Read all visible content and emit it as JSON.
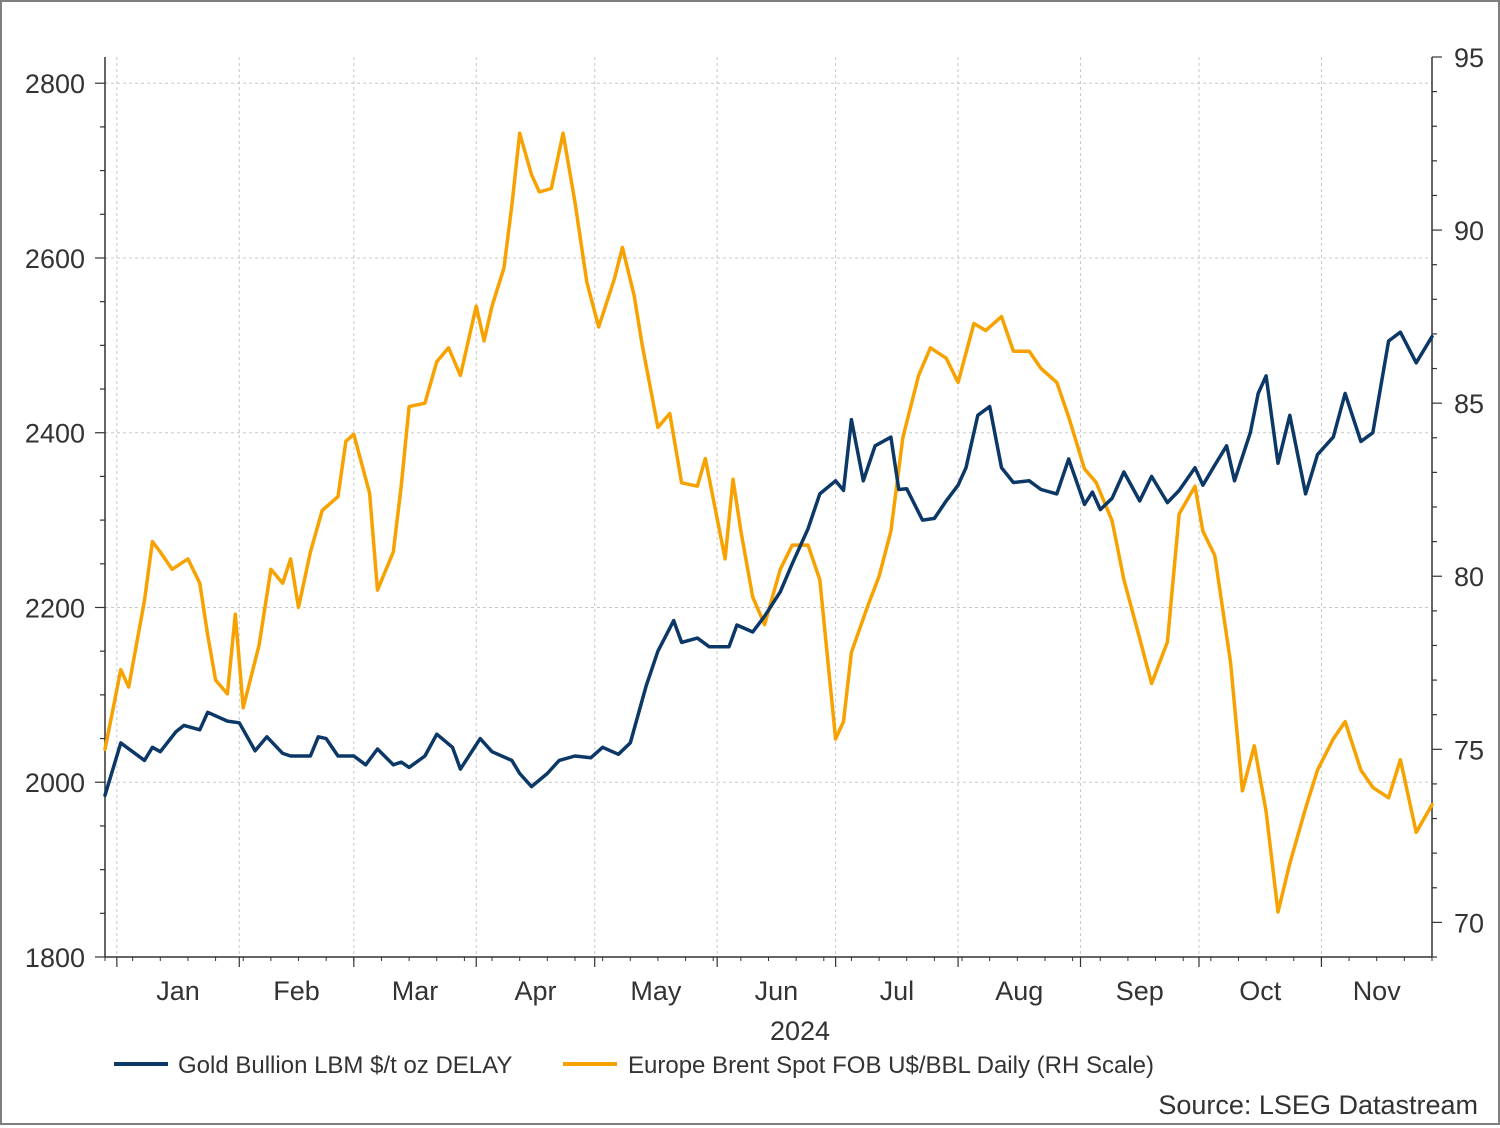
{
  "chart_data": {
    "type": "line",
    "x_axis": {
      "months": [
        "Jan",
        "Feb",
        "Mar",
        "Apr",
        "May",
        "Jun",
        "Jul",
        "Aug",
        "Sep",
        "Oct",
        "Nov"
      ],
      "year_label": "2024",
      "range": [
        "2023-12-29",
        "2024-11-29"
      ]
    },
    "y_left": {
      "ticks": [
        1800,
        2000,
        2200,
        2400,
        2600,
        2800
      ],
      "ylim": [
        1800,
        2830
      ]
    },
    "y_right": {
      "ticks": [
        70,
        75,
        80,
        85,
        90,
        95
      ],
      "ylim": [
        69.0,
        95.0
      ]
    },
    "grid": true,
    "legend_position": "bottom",
    "source": "Source: LSEG Datastream",
    "colors": {
      "gold": "#0b3866",
      "brent": "#f7a200",
      "grid": "#c8c8c8",
      "axis": "#333333"
    },
    "series": [
      {
        "name": "Gold Bullion LBM $/t oz DELAY",
        "axis": "left",
        "points": [
          [
            "2023-12-29",
            1985
          ],
          [
            "2024-01-02",
            2045
          ],
          [
            "2024-01-05",
            2035
          ],
          [
            "2024-01-08",
            2025
          ],
          [
            "2024-01-10",
            2040
          ],
          [
            "2024-01-12",
            2035
          ],
          [
            "2024-01-16",
            2058
          ],
          [
            "2024-01-18",
            2065
          ],
          [
            "2024-01-22",
            2060
          ],
          [
            "2024-01-24",
            2080
          ],
          [
            "2024-01-29",
            2070
          ],
          [
            "2024-02-01",
            2068
          ],
          [
            "2024-02-05",
            2036
          ],
          [
            "2024-02-08",
            2052
          ],
          [
            "2024-02-12",
            2033
          ],
          [
            "2024-02-14",
            2030
          ],
          [
            "2024-02-19",
            2030
          ],
          [
            "2024-02-21",
            2052
          ],
          [
            "2024-02-23",
            2050
          ],
          [
            "2024-02-26",
            2030
          ],
          [
            "2024-03-01",
            2030
          ],
          [
            "2024-03-04",
            2020
          ],
          [
            "2024-03-07",
            2038
          ],
          [
            "2024-03-11",
            2020
          ],
          [
            "2024-03-13",
            2023
          ],
          [
            "2024-03-15",
            2017
          ],
          [
            "2024-03-19",
            2030
          ],
          [
            "2024-03-22",
            2055
          ],
          [
            "2024-03-26",
            2040
          ],
          [
            "2024-03-28",
            2015
          ],
          [
            "2024-04-02",
            2050
          ],
          [
            "2024-04-05",
            2035
          ],
          [
            "2024-04-10",
            2025
          ],
          [
            "2024-04-12",
            2010
          ],
          [
            "2024-04-15",
            1995
          ],
          [
            "2024-04-19",
            2010
          ],
          [
            "2024-04-22",
            2025
          ],
          [
            "2024-04-26",
            2030
          ],
          [
            "2024-04-30",
            2028
          ],
          [
            "2024-05-03",
            2040
          ],
          [
            "2024-05-07",
            2032
          ],
          [
            "2024-05-10",
            2045
          ],
          [
            "2024-05-14",
            2110
          ],
          [
            "2024-05-17",
            2150
          ],
          [
            "2024-05-21",
            2185
          ],
          [
            "2024-05-23",
            2160
          ],
          [
            "2024-05-27",
            2165
          ],
          [
            "2024-05-30",
            2155
          ],
          [
            "2024-06-04",
            2155
          ],
          [
            "2024-06-06",
            2180
          ],
          [
            "2024-06-10",
            2172
          ],
          [
            "2024-06-13",
            2190
          ],
          [
            "2024-06-17",
            2218
          ],
          [
            "2024-06-20",
            2250
          ],
          [
            "2024-06-24",
            2290
          ],
          [
            "2024-06-27",
            2330
          ],
          [
            "2024-07-01",
            2345
          ],
          [
            "2024-07-03",
            2334
          ],
          [
            "2024-07-05",
            2415
          ],
          [
            "2024-07-08",
            2345
          ],
          [
            "2024-07-11",
            2385
          ],
          [
            "2024-07-15",
            2395
          ],
          [
            "2024-07-17",
            2335
          ],
          [
            "2024-07-19",
            2336
          ],
          [
            "2024-07-23",
            2300
          ],
          [
            "2024-07-26",
            2302
          ],
          [
            "2024-07-29",
            2322
          ],
          [
            "2024-08-01",
            2340
          ],
          [
            "2024-08-03",
            2360
          ],
          [
            "2024-08-06",
            2420
          ],
          [
            "2024-08-09",
            2430
          ],
          [
            "2024-08-12",
            2360
          ],
          [
            "2024-08-15",
            2343
          ],
          [
            "2024-08-19",
            2345
          ],
          [
            "2024-08-22",
            2335
          ],
          [
            "2024-08-26",
            2330
          ],
          [
            "2024-08-29",
            2370
          ],
          [
            "2024-09-02",
            2318
          ],
          [
            "2024-09-04",
            2332
          ],
          [
            "2024-09-06",
            2312
          ],
          [
            "2024-09-09",
            2325
          ],
          [
            "2024-09-12",
            2355
          ],
          [
            "2024-09-16",
            2322
          ],
          [
            "2024-09-19",
            2350
          ],
          [
            "2024-09-23",
            2320
          ],
          [
            "2024-09-26",
            2334
          ],
          [
            "2024-09-30",
            2360
          ],
          [
            "2024-10-02",
            2340
          ],
          [
            "2024-10-05",
            2363
          ],
          [
            "2024-10-08",
            2385
          ],
          [
            "2024-10-10",
            2345
          ],
          [
            "2024-10-14",
            2400
          ],
          [
            "2024-10-16",
            2445
          ],
          [
            "2024-10-18",
            2465
          ],
          [
            "2024-10-21",
            2365
          ],
          [
            "2024-10-24",
            2420
          ],
          [
            "2024-10-28",
            2330
          ],
          [
            "2024-10-31",
            2375
          ],
          [
            "2024-11-04",
            2395
          ],
          [
            "2024-11-07",
            2445
          ],
          [
            "2024-11-11",
            2390
          ],
          [
            "2024-11-14",
            2400
          ],
          [
            "2024-11-18",
            2505
          ],
          [
            "2024-11-21",
            2515
          ],
          [
            "2024-11-25",
            2480
          ],
          [
            "2024-11-29",
            2510
          ]
        ]
      },
      {
        "name": "Europe Brent Spot FOB U$/BBL Daily (RH Scale)",
        "axis": "right",
        "points": [
          [
            "2023-12-29",
            75.0
          ],
          [
            "2024-01-02",
            77.3
          ],
          [
            "2024-01-04",
            76.8
          ],
          [
            "2024-01-08",
            79.3
          ],
          [
            "2024-01-10",
            81.0
          ],
          [
            "2024-01-12",
            80.7
          ],
          [
            "2024-01-15",
            80.2
          ],
          [
            "2024-01-19",
            80.5
          ],
          [
            "2024-01-22",
            79.8
          ],
          [
            "2024-01-24",
            78.3
          ],
          [
            "2024-01-26",
            77.0
          ],
          [
            "2024-01-29",
            76.6
          ],
          [
            "2024-01-31",
            78.9
          ],
          [
            "2024-02-02",
            76.2
          ],
          [
            "2024-02-06",
            78.0
          ],
          [
            "2024-02-09",
            80.2
          ],
          [
            "2024-02-12",
            79.8
          ],
          [
            "2024-02-14",
            80.5
          ],
          [
            "2024-02-16",
            79.1
          ],
          [
            "2024-02-19",
            80.7
          ],
          [
            "2024-02-22",
            81.9
          ],
          [
            "2024-02-26",
            82.3
          ],
          [
            "2024-02-28",
            83.9
          ],
          [
            "2024-03-01",
            84.1
          ],
          [
            "2024-03-05",
            82.4
          ],
          [
            "2024-03-07",
            79.6
          ],
          [
            "2024-03-11",
            80.7
          ],
          [
            "2024-03-13",
            82.6
          ],
          [
            "2024-03-15",
            84.9
          ],
          [
            "2024-03-19",
            85.0
          ],
          [
            "2024-03-22",
            86.2
          ],
          [
            "2024-03-25",
            86.6
          ],
          [
            "2024-03-28",
            85.8
          ],
          [
            "2024-04-01",
            87.8
          ],
          [
            "2024-04-03",
            86.8
          ],
          [
            "2024-04-05",
            87.8
          ],
          [
            "2024-04-08",
            88.9
          ],
          [
            "2024-04-10",
            90.7
          ],
          [
            "2024-04-12",
            92.8
          ],
          [
            "2024-04-15",
            91.6
          ],
          [
            "2024-04-17",
            91.1
          ],
          [
            "2024-04-20",
            91.2
          ],
          [
            "2024-04-23",
            92.8
          ],
          [
            "2024-04-26",
            90.8
          ],
          [
            "2024-04-29",
            88.5
          ],
          [
            "2024-05-02",
            87.2
          ],
          [
            "2024-05-06",
            88.6
          ],
          [
            "2024-05-08",
            89.5
          ],
          [
            "2024-05-11",
            88.1
          ],
          [
            "2024-05-13",
            86.7
          ],
          [
            "2024-05-17",
            84.3
          ],
          [
            "2024-05-20",
            84.7
          ],
          [
            "2024-05-23",
            82.7
          ],
          [
            "2024-05-27",
            82.6
          ],
          [
            "2024-05-29",
            83.4
          ],
          [
            "2024-06-03",
            80.5
          ],
          [
            "2024-06-05",
            82.8
          ],
          [
            "2024-06-07",
            81.3
          ],
          [
            "2024-06-10",
            79.4
          ],
          [
            "2024-06-13",
            78.6
          ],
          [
            "2024-06-17",
            80.2
          ],
          [
            "2024-06-20",
            80.9
          ],
          [
            "2024-06-24",
            80.9
          ],
          [
            "2024-06-27",
            79.9
          ],
          [
            "2024-07-01",
            75.3
          ],
          [
            "2024-07-03",
            75.8
          ],
          [
            "2024-07-05",
            77.8
          ],
          [
            "2024-07-09",
            79.1
          ],
          [
            "2024-07-12",
            80.0
          ],
          [
            "2024-07-15",
            81.3
          ],
          [
            "2024-07-18",
            84.0
          ],
          [
            "2024-07-22",
            85.8
          ],
          [
            "2024-07-25",
            86.6
          ],
          [
            "2024-07-29",
            86.3
          ],
          [
            "2024-08-01",
            85.6
          ],
          [
            "2024-08-05",
            87.3
          ],
          [
            "2024-08-08",
            87.1
          ],
          [
            "2024-08-12",
            87.5
          ],
          [
            "2024-08-15",
            86.5
          ],
          [
            "2024-08-19",
            86.5
          ],
          [
            "2024-08-22",
            86.0
          ],
          [
            "2024-08-26",
            85.6
          ],
          [
            "2024-08-29",
            84.6
          ],
          [
            "2024-09-02",
            83.1
          ],
          [
            "2024-09-05",
            82.7
          ],
          [
            "2024-09-09",
            81.6
          ],
          [
            "2024-09-12",
            79.9
          ],
          [
            "2024-09-16",
            78.2
          ],
          [
            "2024-09-19",
            76.9
          ],
          [
            "2024-09-23",
            78.1
          ],
          [
            "2024-09-26",
            81.8
          ],
          [
            "2024-09-30",
            82.6
          ],
          [
            "2024-10-02",
            81.3
          ],
          [
            "2024-10-05",
            80.6
          ],
          [
            "2024-10-09",
            77.5
          ],
          [
            "2024-10-12",
            73.8
          ],
          [
            "2024-10-15",
            75.1
          ],
          [
            "2024-10-18",
            73.2
          ],
          [
            "2024-10-21",
            70.3
          ],
          [
            "2024-10-24",
            71.7
          ],
          [
            "2024-10-28",
            73.3
          ],
          [
            "2024-10-31",
            74.4
          ],
          [
            "2024-11-04",
            75.3
          ],
          [
            "2024-11-07",
            75.8
          ],
          [
            "2024-11-11",
            74.4
          ],
          [
            "2024-11-14",
            73.9
          ],
          [
            "2024-11-18",
            73.6
          ],
          [
            "2024-11-21",
            74.7
          ],
          [
            "2024-11-25",
            72.6
          ],
          [
            "2024-11-29",
            73.4
          ]
        ]
      }
    ]
  }
}
